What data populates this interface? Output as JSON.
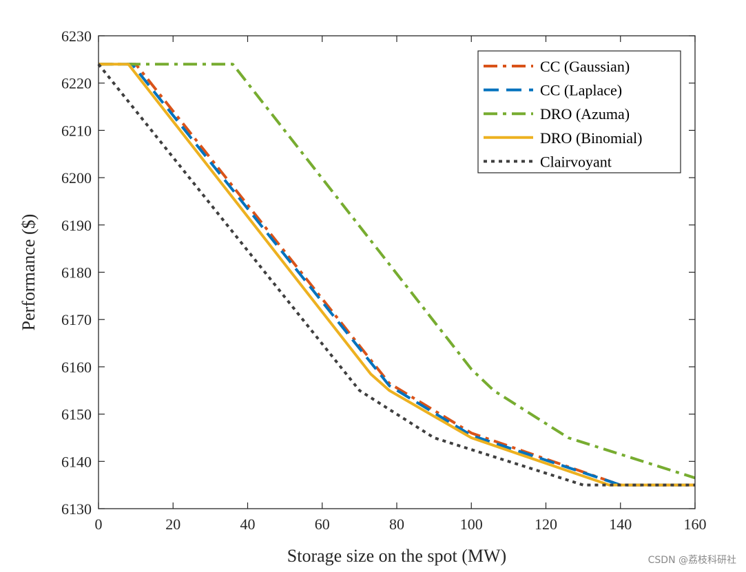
{
  "chart_data": {
    "type": "line",
    "title": "",
    "xlabel": "Storage size on the spot (MW)",
    "ylabel": "Performance ($)",
    "xlim": [
      0,
      160
    ],
    "ylim": [
      6130,
      6230
    ],
    "xticks": [
      0,
      20,
      40,
      60,
      80,
      100,
      120,
      140,
      160
    ],
    "yticks": [
      6130,
      6140,
      6150,
      6160,
      6170,
      6180,
      6190,
      6200,
      6210,
      6220,
      6230
    ],
    "grid": false,
    "legend_position": "top-right",
    "series": [
      {
        "name": "CC (Gaussian)",
        "color": "#D95319",
        "style": "dashdot",
        "x": [
          0,
          10,
          78,
          100,
          140,
          160
        ],
        "y": [
          6224,
          6224,
          6156.5,
          6146,
          6135,
          6135
        ]
      },
      {
        "name": "CC (Laplace)",
        "color": "#0072BD",
        "style": "dashed",
        "x": [
          0,
          9,
          78,
          100,
          140,
          160
        ],
        "y": [
          6224,
          6224,
          6156,
          6145.5,
          6135,
          6135
        ]
      },
      {
        "name": "DRO (Azuma)",
        "color": "#77AC30",
        "style": "dashdot",
        "x": [
          0,
          36,
          100,
          106,
          126,
          160
        ],
        "y": [
          6224,
          6224,
          6159.5,
          6155,
          6145,
          6136.5
        ]
      },
      {
        "name": "DRO (Binomial)",
        "color": "#EDB120",
        "style": "solid",
        "x": [
          0,
          8,
          73,
          78,
          100,
          137,
          160
        ],
        "y": [
          6224,
          6224,
          6158.5,
          6155,
          6145,
          6135,
          6135
        ]
      },
      {
        "name": "Clairvoyant",
        "color": "#3F3F3F",
        "style": "dotted",
        "x": [
          0,
          70,
          90,
          130,
          160
        ],
        "y": [
          6224,
          6155,
          6145,
          6135,
          6135
        ]
      }
    ]
  },
  "watermark": "CSDN @荔枝科研社"
}
